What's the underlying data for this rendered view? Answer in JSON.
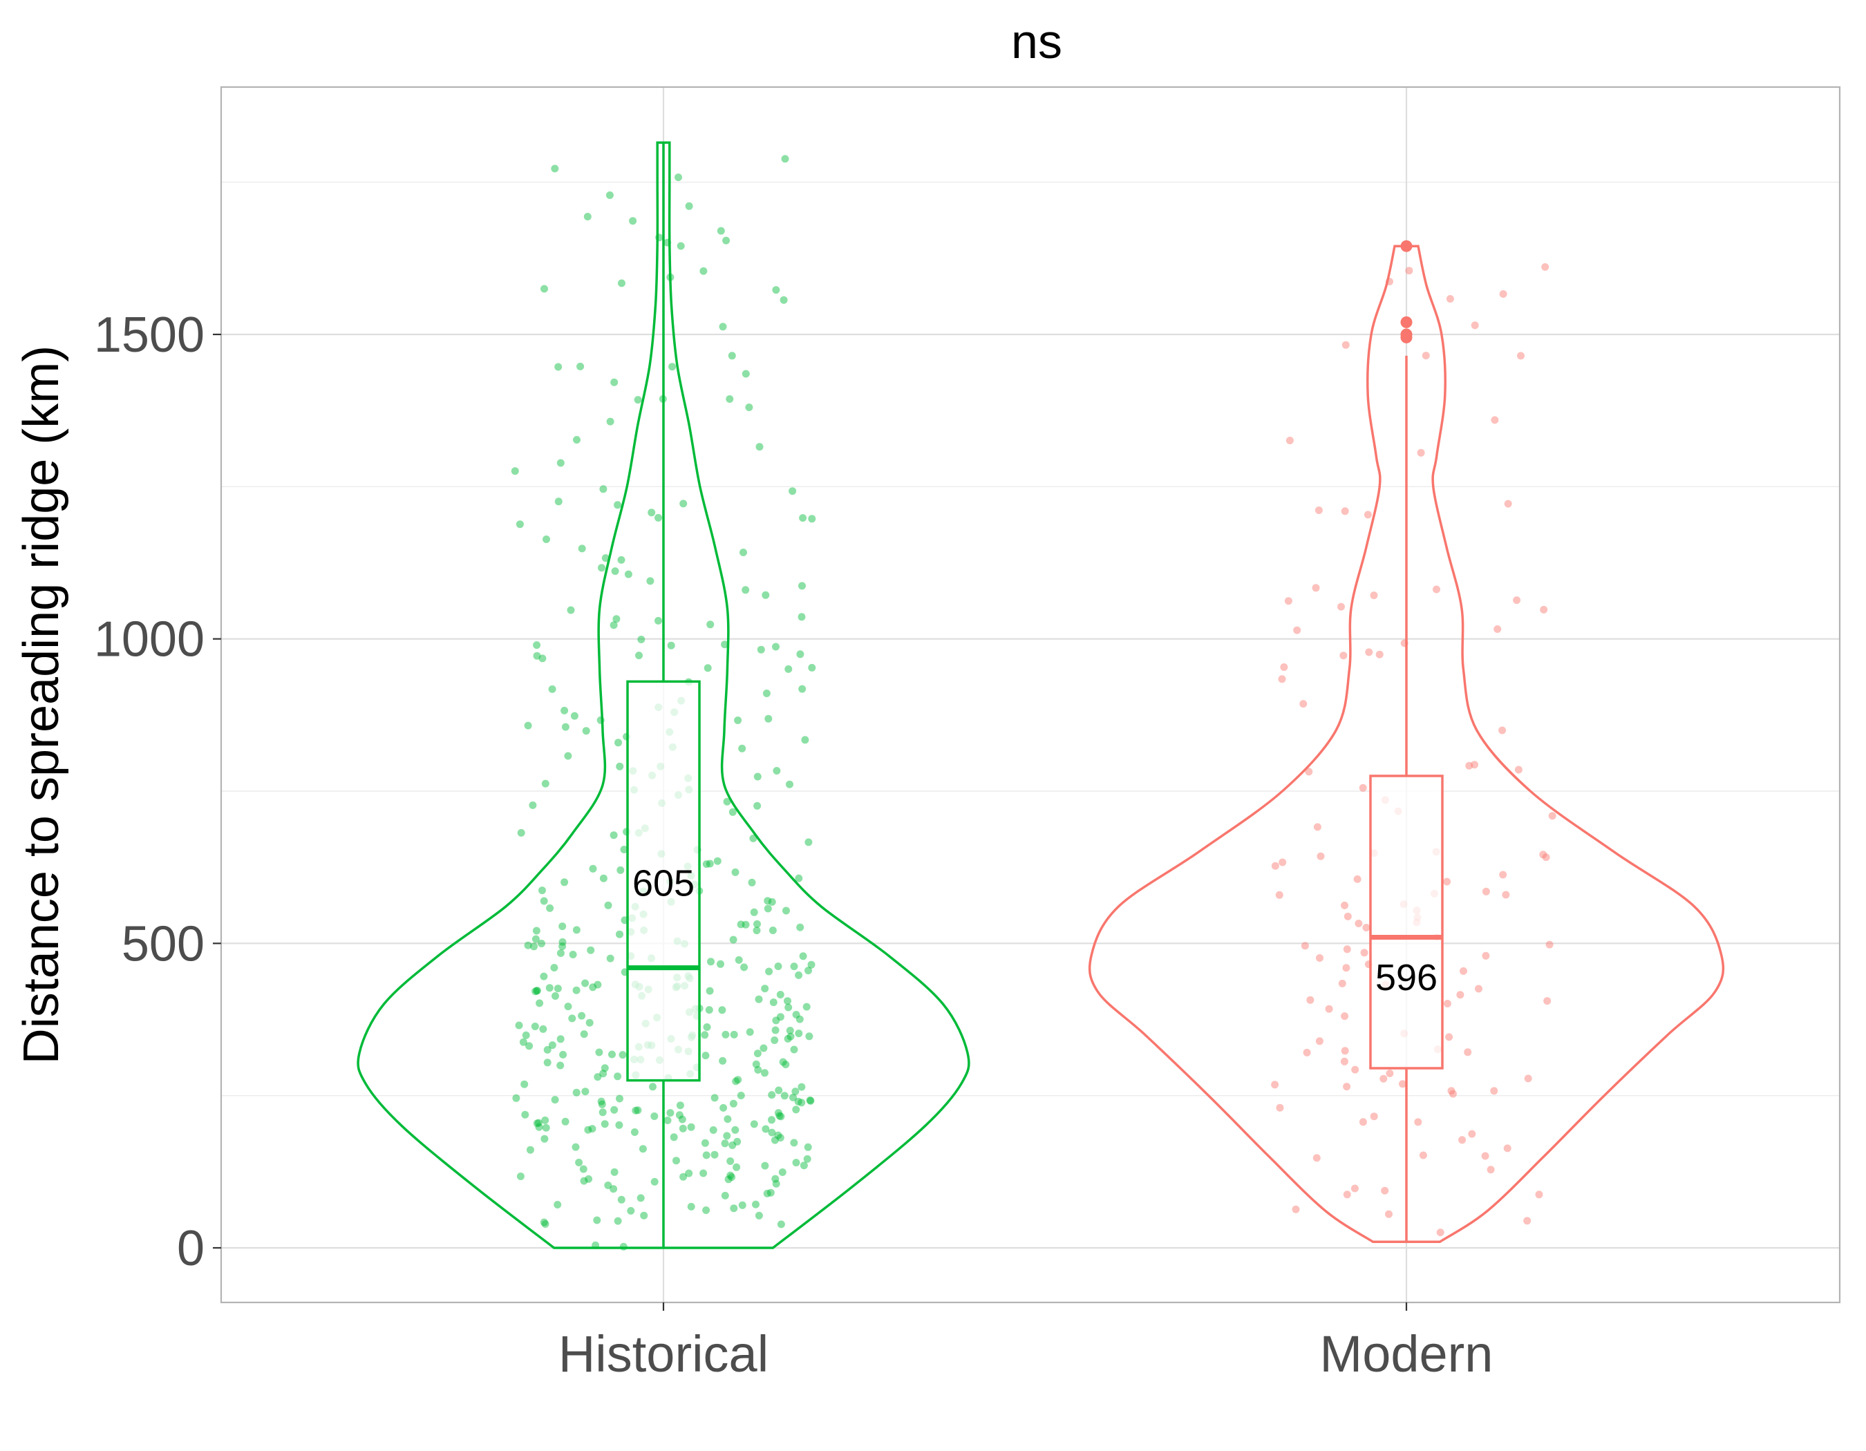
{
  "chart_data": {
    "type": "violin",
    "title": "ns",
    "xlabel": "",
    "ylabel": "Distance to spreading ridge (km)",
    "ylim": [
      -90,
      2000
    ],
    "yticks": [
      0,
      500,
      1000,
      1500
    ],
    "grid": true,
    "legend": "none",
    "categories": [
      "Historical",
      "Modern"
    ],
    "series": [
      {
        "category": "Historical",
        "color": "#00BA38",
        "box": {
          "min": 0,
          "q1": 275,
          "median": 460,
          "q3": 930,
          "max": 1815
        },
        "mean_label": "605",
        "violin_range": [
          0,
          1815
        ],
        "violin_density": [
          [
            0,
            0.36
          ],
          [
            100,
            0.62
          ],
          [
            200,
            0.86
          ],
          [
            270,
            0.98
          ],
          [
            320,
            1.0
          ],
          [
            400,
            0.92
          ],
          [
            480,
            0.74
          ],
          [
            560,
            0.52
          ],
          [
            620,
            0.4
          ],
          [
            680,
            0.3
          ],
          [
            760,
            0.2
          ],
          [
            850,
            0.2
          ],
          [
            950,
            0.21
          ],
          [
            1050,
            0.21
          ],
          [
            1150,
            0.17
          ],
          [
            1250,
            0.12
          ],
          [
            1350,
            0.085
          ],
          [
            1450,
            0.045
          ],
          [
            1550,
            0.026
          ],
          [
            1650,
            0.02
          ],
          [
            1750,
            0.02
          ],
          [
            1815,
            0.02
          ]
        ],
        "n_points": 420
      },
      {
        "category": "Modern",
        "color": "#F8766D",
        "box": {
          "min": 10,
          "q1": 295,
          "median": 510,
          "q3": 775,
          "max": 1465
        },
        "mean_label": "596",
        "violin_range": [
          10,
          1645
        ],
        "violin_density": [
          [
            10,
            0.1
          ],
          [
            60,
            0.24
          ],
          [
            150,
            0.41
          ],
          [
            250,
            0.59
          ],
          [
            350,
            0.78
          ],
          [
            420,
            0.92
          ],
          [
            480,
            0.94
          ],
          [
            560,
            0.86
          ],
          [
            650,
            0.62
          ],
          [
            750,
            0.37
          ],
          [
            850,
            0.21
          ],
          [
            950,
            0.17
          ],
          [
            1050,
            0.165
          ],
          [
            1150,
            0.12
          ],
          [
            1250,
            0.08
          ],
          [
            1300,
            0.09
          ],
          [
            1400,
            0.115
          ],
          [
            1500,
            0.105
          ],
          [
            1580,
            0.06
          ],
          [
            1645,
            0.035
          ]
        ],
        "outliers": [
          1645,
          1520,
          1500,
          1495
        ],
        "n_points": 120
      }
    ]
  }
}
